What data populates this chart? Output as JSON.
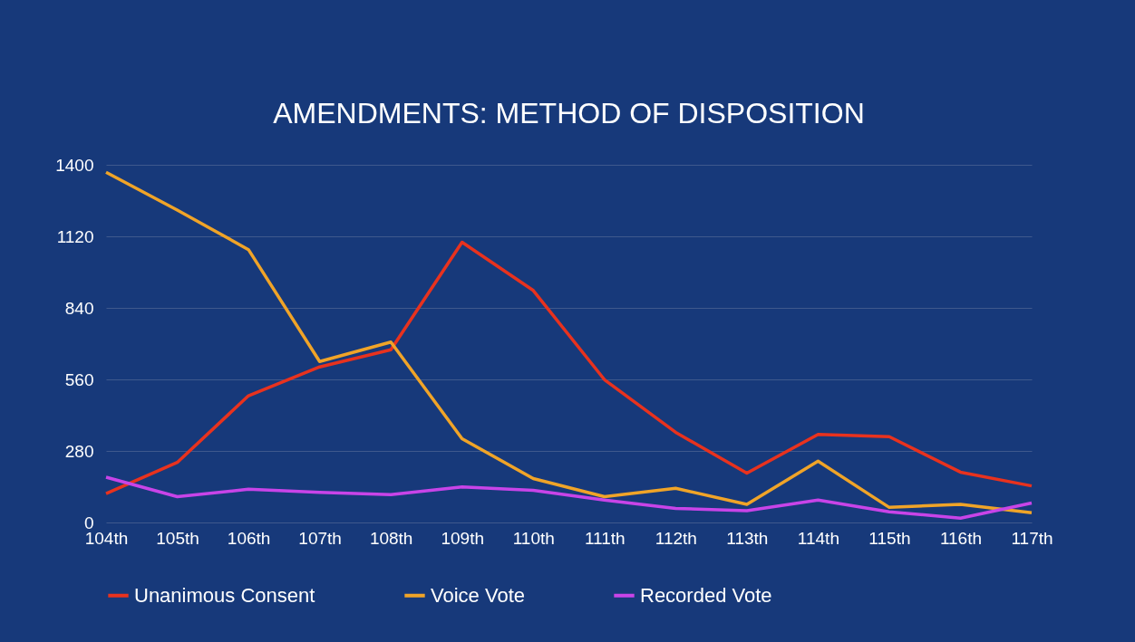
{
  "chart_data": {
    "type": "line",
    "title": "AMENDMENTS: METHOD OF DISPOSITION",
    "categories": [
      "104th",
      "105th",
      "106th",
      "107th",
      "108th",
      "109th",
      "110th",
      "111th",
      "112th",
      "113th",
      "114th",
      "115th",
      "116th",
      "117th"
    ],
    "series": [
      {
        "name": "Unanimous Consent",
        "color": "#e8321e",
        "values": [
          113,
          235,
          496,
          609,
          676,
          1097,
          908,
          559,
          353,
          193,
          345,
          336,
          197,
          143
        ]
      },
      {
        "name": "Voice Vote",
        "color": "#f0a428",
        "values": [
          1371,
          1223,
          1068,
          630,
          706,
          328,
          172,
          101,
          134,
          71,
          240,
          59,
          71,
          38
        ]
      },
      {
        "name": "Recorded Vote",
        "color": "#c844e8",
        "values": [
          177,
          101,
          130,
          118,
          109,
          139,
          126,
          88,
          55,
          46,
          88,
          42,
          17,
          76
        ]
      }
    ],
    "ylim": [
      0,
      1400
    ],
    "yticks": [
      0,
      280,
      560,
      840,
      1120,
      1400
    ],
    "grid": "y",
    "legend": "bottom",
    "marker": "none",
    "line_style": "solid"
  }
}
